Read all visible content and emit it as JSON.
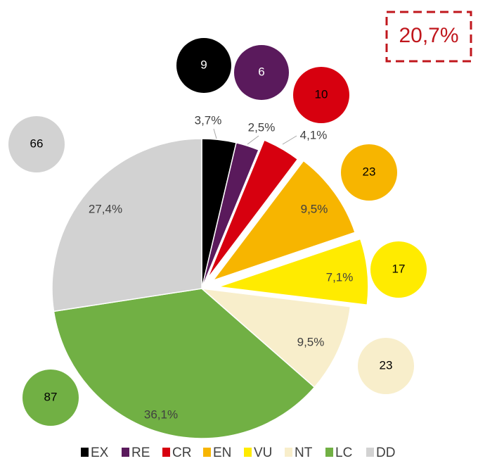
{
  "chart_data": {
    "type": "pie",
    "categories": [
      "EX",
      "RE",
      "CR",
      "EN",
      "VU",
      "NT",
      "LC",
      "DD"
    ],
    "values": [
      3.7,
      2.5,
      4.1,
      9.5,
      7.1,
      9.5,
      36.1,
      27.4
    ],
    "value_labels": [
      "3,7%",
      "2,5%",
      "4,1%",
      "9,5%",
      "7,1%",
      "9,5%",
      "36,1%",
      "27,4%"
    ],
    "counts": [
      9,
      6,
      10,
      23,
      17,
      23,
      87,
      66
    ],
    "colors": [
      "#000000",
      "#5a1a5c",
      "#d7000f",
      "#f7b500",
      "#ffeb00",
      "#f8eecb",
      "#71b044",
      "#d2d2d2"
    ],
    "explode": [
      false,
      false,
      true,
      true,
      true,
      false,
      false,
      false
    ],
    "annotation": "20,7%",
    "legend": "bottom"
  }
}
